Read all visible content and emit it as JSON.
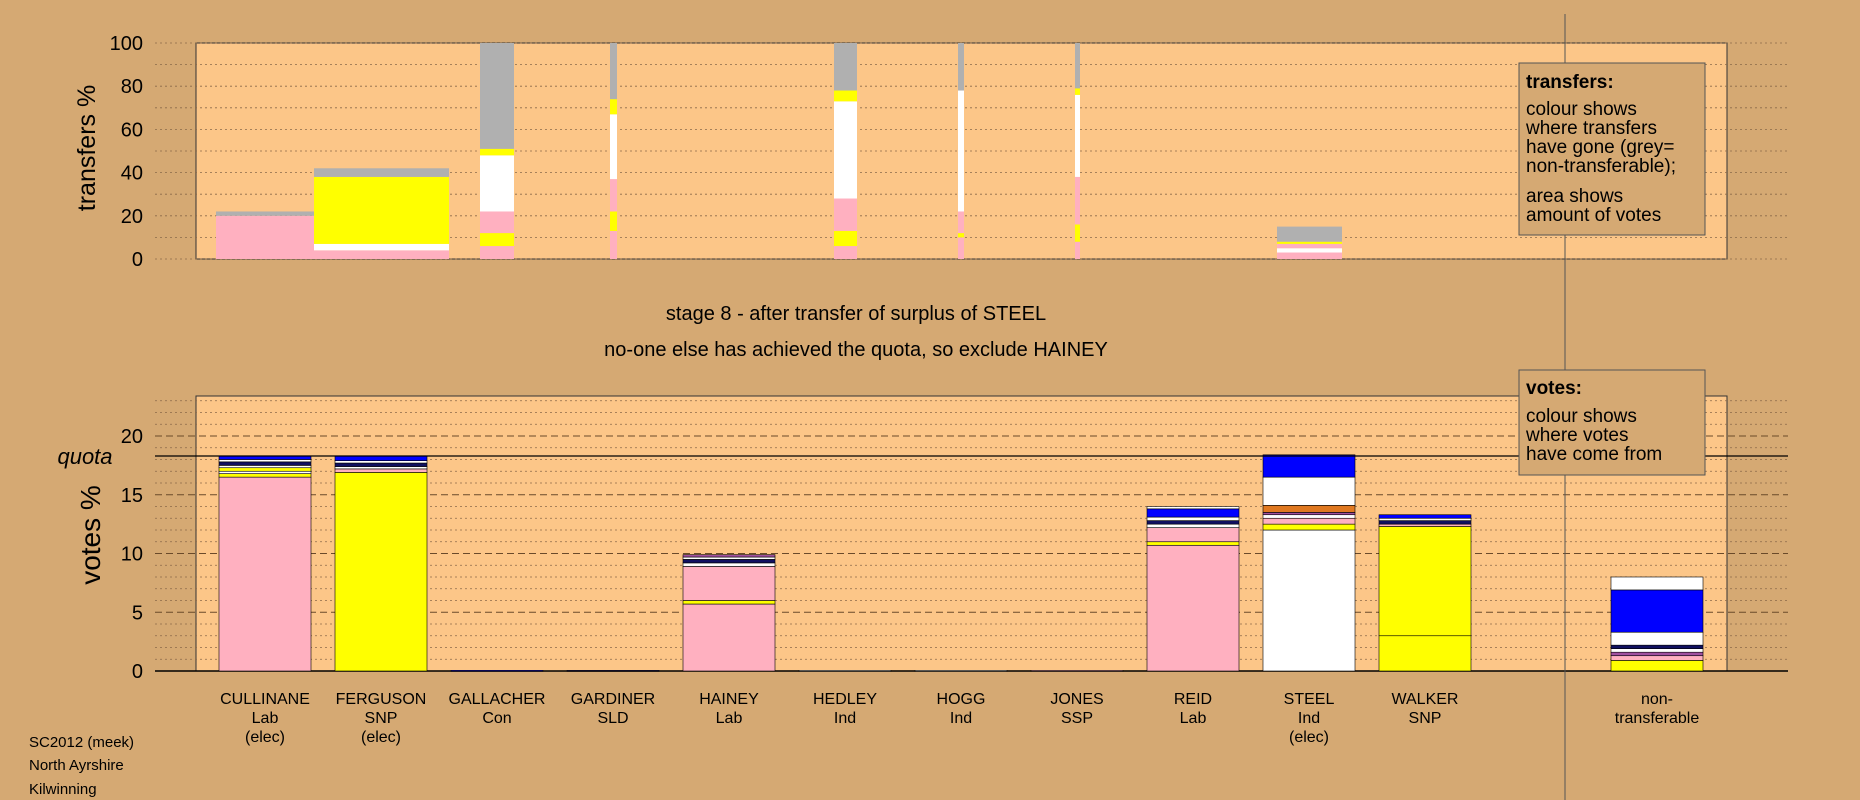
{
  "colors": {
    "background": "#d5a973",
    "plot_background": "#fcc688",
    "lab": "#ffb0c0",
    "snp": "#ffff00",
    "ind": "#ffffff",
    "grey": "#b0b0b0",
    "blue": "#0000ff",
    "navy": "#101060",
    "orange": "#e07820",
    "purple": "#a050a0"
  },
  "titles": {
    "stage": "stage 8 - after transfer of surplus of STEEL",
    "action": "no-one else has achieved the quota, so exclude HAINEY"
  },
  "footer": {
    "line1": "SC2012 (meek)",
    "line2": "North Ayrshire",
    "line3": "Kilwinning"
  },
  "legend_transfers": {
    "title": "transfers:",
    "lines": [
      "colour shows",
      "where transfers",
      "have gone (grey=",
      "non-transferable);",
      "area shows",
      "amount of votes"
    ]
  },
  "legend_votes": {
    "title": "votes:",
    "lines": [
      "colour shows",
      "where votes",
      "have come from"
    ]
  },
  "chart_data": [
    {
      "type": "bar",
      "ylabel": "transfers %",
      "ylim": [
        0,
        100
      ],
      "yticks": [
        0,
        20,
        40,
        60,
        80,
        100
      ],
      "note": "stacked transfer breakdown per candidate; width proportional to amount of votes transferred",
      "bars": [
        {
          "candidate": "CULLINANE",
          "segments": [
            {
              "color": "lab",
              "value": 20
            },
            {
              "color": "grey",
              "value": 2
            }
          ]
        },
        {
          "candidate": "FERGUSON",
          "segments": [
            {
              "color": "lab",
              "value": 4
            },
            {
              "color": "ind",
              "value": 3
            },
            {
              "color": "snp",
              "value": 31
            },
            {
              "color": "grey",
              "value": 4
            }
          ]
        },
        {
          "candidate": "GALLACHER",
          "segments": [
            {
              "color": "lab",
              "value": 6
            },
            {
              "color": "snp",
              "value": 6
            },
            {
              "color": "lab",
              "value": 10
            },
            {
              "color": "ind",
              "value": 26
            },
            {
              "color": "snp",
              "value": 3
            },
            {
              "color": "grey",
              "value": 49
            }
          ]
        },
        {
          "candidate": "GARDINER",
          "segments": [
            {
              "color": "lab",
              "value": 13
            },
            {
              "color": "snp",
              "value": 9
            },
            {
              "color": "lab",
              "value": 15
            },
            {
              "color": "ind",
              "value": 30
            },
            {
              "color": "snp",
              "value": 7
            },
            {
              "color": "grey",
              "value": 26
            }
          ]
        },
        {
          "candidate": "HEDLEY",
          "segments": [
            {
              "color": "lab",
              "value": 6
            },
            {
              "color": "snp",
              "value": 7
            },
            {
              "color": "lab",
              "value": 15
            },
            {
              "color": "ind",
              "value": 45
            },
            {
              "color": "snp",
              "value": 5
            },
            {
              "color": "grey",
              "value": 22
            }
          ]
        },
        {
          "candidate": "HOGG",
          "segments": [
            {
              "color": "lab",
              "value": 10
            },
            {
              "color": "snp",
              "value": 2
            },
            {
              "color": "lab",
              "value": 10
            },
            {
              "color": "ind",
              "value": 56
            },
            {
              "color": "grey",
              "value": 22
            }
          ]
        },
        {
          "candidate": "JONES",
          "segments": [
            {
              "color": "lab",
              "value": 8
            },
            {
              "color": "snp",
              "value": 8
            },
            {
              "color": "lab",
              "value": 22
            },
            {
              "color": "ind",
              "value": 38
            },
            {
              "color": "snp",
              "value": 3
            },
            {
              "color": "grey",
              "value": 21
            }
          ]
        },
        {
          "candidate": "STEEL",
          "segments": [
            {
              "color": "lab",
              "value": 3
            },
            {
              "color": "ind",
              "value": 2
            },
            {
              "color": "lab",
              "value": 2
            },
            {
              "color": "snp",
              "value": 1
            },
            {
              "color": "grey",
              "value": 7
            }
          ]
        }
      ]
    },
    {
      "type": "bar",
      "ylabel": "votes %",
      "ylim": [
        0,
        23
      ],
      "yticks": [
        0,
        5,
        10,
        15,
        20
      ],
      "quota": 18.3,
      "quota_label": "quota",
      "categories": [
        {
          "name": "CULLINANE",
          "party": "Lab",
          "status": "(elec)"
        },
        {
          "name": "FERGUSON",
          "party": "SNP",
          "status": "(elec)"
        },
        {
          "name": "GALLACHER",
          "party": "Con",
          "status": ""
        },
        {
          "name": "GARDINER",
          "party": "SLD",
          "status": ""
        },
        {
          "name": "HAINEY",
          "party": "Lab",
          "status": ""
        },
        {
          "name": "HEDLEY",
          "party": "Ind",
          "status": ""
        },
        {
          "name": "HOGG",
          "party": "Ind",
          "status": ""
        },
        {
          "name": "JONES",
          "party": "SSP",
          "status": ""
        },
        {
          "name": "REID",
          "party": "Lab",
          "status": ""
        },
        {
          "name": "STEEL",
          "party": "Ind",
          "status": "(elec)"
        },
        {
          "name": "WALKER",
          "party": "SNP",
          "status": ""
        }
      ],
      "nontransferable_label": [
        "non-",
        "transferable"
      ],
      "stacks": [
        [
          {
            "color": "lab",
            "value": 16.5
          },
          {
            "color": "snp",
            "value": 0.3
          },
          {
            "color": "ind",
            "value": 0.2
          },
          {
            "color": "snp",
            "value": 0.3
          },
          {
            "color": "ind",
            "value": 0.2
          },
          {
            "color": "navy",
            "value": 0.3
          },
          {
            "color": "ind",
            "value": 0.2
          },
          {
            "color": "blue",
            "value": 0.3
          }
        ],
        [
          {
            "color": "snp",
            "value": 16.9
          },
          {
            "color": "lab",
            "value": 0.3
          },
          {
            "color": "ind",
            "value": 0.2
          },
          {
            "color": "navy",
            "value": 0.3
          },
          {
            "color": "ind",
            "value": 0.2
          },
          {
            "color": "blue",
            "value": 0.4
          }
        ],
        [
          {
            "color": "blue",
            "value": 0.05
          }
        ],
        [
          {
            "color": "navy",
            "value": 0.05
          }
        ],
        [
          {
            "color": "lab",
            "value": 5.7
          },
          {
            "color": "snp",
            "value": 0.3
          },
          {
            "color": "lab",
            "value": 2.9
          },
          {
            "color": "ind",
            "value": 0.3
          },
          {
            "color": "navy",
            "value": 0.3
          },
          {
            "color": "ind",
            "value": 0.2
          },
          {
            "color": "purple",
            "value": 0.2
          }
        ],
        [
          {
            "color": "ind",
            "value": 0.05
          }
        ],
        [
          {
            "color": "ind",
            "value": 0.05
          }
        ],
        [
          {
            "color": "lab",
            "value": 0.05
          }
        ],
        [
          {
            "color": "lab",
            "value": 10.7
          },
          {
            "color": "snp",
            "value": 0.3
          },
          {
            "color": "lab",
            "value": 1.2
          },
          {
            "color": "ind",
            "value": 0.3
          },
          {
            "color": "navy",
            "value": 0.3
          },
          {
            "color": "ind",
            "value": 0.3
          },
          {
            "color": "blue",
            "value": 0.7
          },
          {
            "color": "ind",
            "value": 0.2
          }
        ],
        [
          {
            "color": "ind",
            "value": 12.0
          },
          {
            "color": "snp",
            "value": 0.5
          },
          {
            "color": "lab",
            "value": 0.5
          },
          {
            "color": "ind",
            "value": 0.3
          },
          {
            "color": "purple",
            "value": 0.2
          },
          {
            "color": "orange",
            "value": 0.6
          },
          {
            "color": "ind",
            "value": 2.4
          },
          {
            "color": "blue",
            "value": 1.9
          }
        ],
        [
          {
            "color": "snp",
            "value": 3.0
          },
          {
            "color": "snp",
            "value": 9.3
          },
          {
            "color": "lab",
            "value": 0.2
          },
          {
            "color": "navy",
            "value": 0.3
          },
          {
            "color": "ind",
            "value": 0.2
          },
          {
            "color": "blue",
            "value": 0.3
          }
        ]
      ],
      "nontransferable": [
        {
          "color": "snp",
          "value": 0.9
        },
        {
          "color": "lab",
          "value": 0.4
        },
        {
          "color": "purple",
          "value": 0.3
        },
        {
          "color": "ind",
          "value": 0.3
        },
        {
          "color": "navy",
          "value": 0.3
        },
        {
          "color": "ind",
          "value": 1.1
        },
        {
          "color": "blue",
          "value": 3.6
        },
        {
          "color": "ind",
          "value": 1.1
        }
      ]
    }
  ]
}
